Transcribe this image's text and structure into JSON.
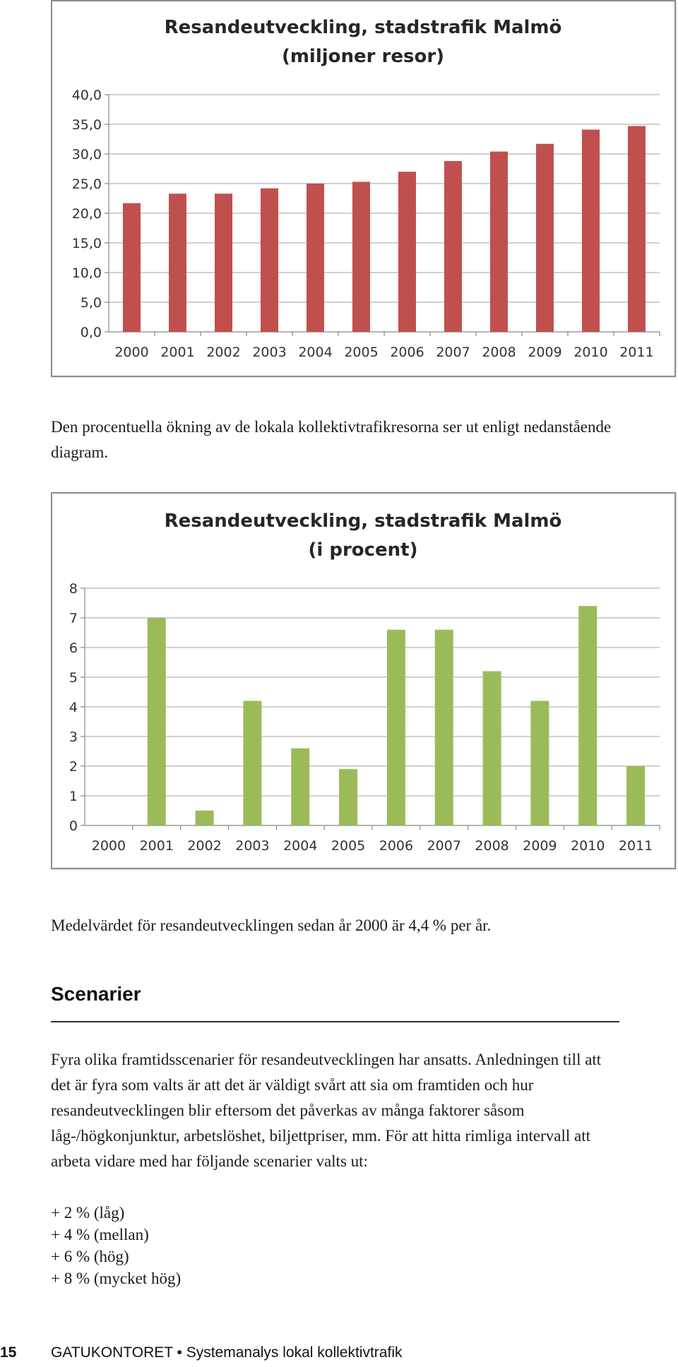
{
  "chart_data": [
    {
      "type": "bar",
      "title": "Resandeutveckling, stadstrafik Malmö",
      "subtitle": "(miljoner resor)",
      "categories": [
        "2000",
        "2001",
        "2002",
        "2003",
        "2004",
        "2005",
        "2006",
        "2007",
        "2008",
        "2009",
        "2010",
        "2011"
      ],
      "values": [
        21.7,
        23.3,
        23.3,
        24.2,
        25.0,
        25.3,
        27.0,
        28.8,
        30.4,
        31.7,
        34.1,
        34.7
      ],
      "ylim": [
        0,
        40
      ],
      "yticks": [
        "0,0",
        "5,0",
        "10,0",
        "15,0",
        "20,0",
        "25,0",
        "30,0",
        "35,0",
        "40,0"
      ],
      "grid": true,
      "color": "#c0504d"
    },
    {
      "type": "bar",
      "title": "Resandeutveckling, stadstrafik Malmö",
      "subtitle": "(i procent)",
      "categories": [
        "2000",
        "2001",
        "2002",
        "2003",
        "2004",
        "2005",
        "2006",
        "2007",
        "2008",
        "2009",
        "2010",
        "2011"
      ],
      "values": [
        0,
        7.0,
        0.5,
        4.2,
        2.6,
        1.9,
        6.6,
        6.6,
        5.2,
        4.2,
        7.4,
        2.0
      ],
      "ylim": [
        0,
        8
      ],
      "yticks": [
        "0",
        "1",
        "2",
        "3",
        "4",
        "5",
        "6",
        "7",
        "8"
      ],
      "grid": true,
      "color": "#9bbb59"
    }
  ],
  "text": {
    "intro": "Den procentuella ökning av de lokala kollektivtrafikresorna ser ut enligt nedanstående diagram.",
    "mean": "Medelvärdet för resandeutvecklingen sedan år 2000 är 4,4 % per år.",
    "heading": "Scenarier",
    "para": "Fyra olika framtidsscenarier för resandeutvecklingen har ansatts. Anledningen till att det är fyra som valts är att det är väldigt svårt att sia om framtiden och hur resandeutvecklingen blir eftersom det påverkas av många faktorer såsom låg-/högkonjunktur, arbetslöshet, biljettpriser, mm. För att hitta rimliga intervall att arbeta vidare med har följande scenarier valts ut:",
    "scenarios": [
      "+ 2 % (låg)",
      "+ 4 % (mellan)",
      "+ 6 % (hög)",
      "+ 8 % (mycket hög)"
    ]
  },
  "footer": {
    "page_number": "15",
    "title": "GATUKONTORET • Systemanalys lokal kollektivtrafik"
  }
}
